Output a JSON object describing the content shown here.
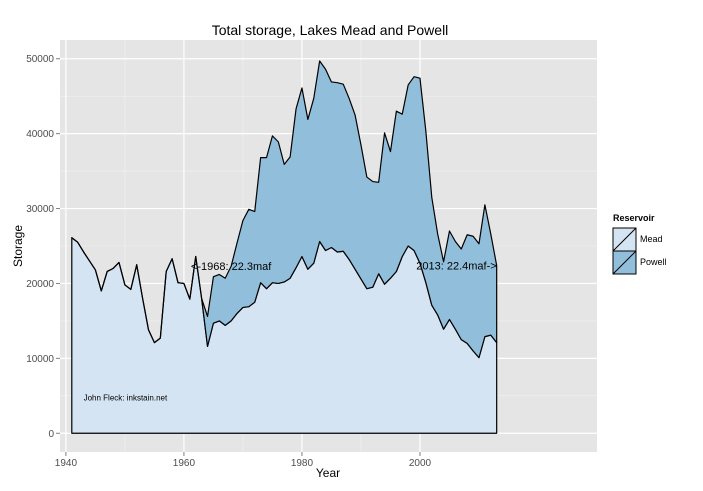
{
  "chart_data": {
    "type": "area",
    "stacked": true,
    "title": "Total storage, Lakes Mead and Powell",
    "xlabel": "Year",
    "ylabel": "Storage",
    "xlim": [
      1939,
      2030
    ],
    "ylim": [
      -2500,
      52500
    ],
    "x_ticks": [
      1940,
      1960,
      1980,
      2000
    ],
    "y_ticks": [
      0,
      10000,
      20000,
      30000,
      40000,
      50000
    ],
    "grid": true,
    "legend": {
      "title": "Reservoir",
      "placement": "right"
    },
    "x": [
      1941,
      1942,
      1943,
      1944,
      1945,
      1946,
      1947,
      1948,
      1949,
      1950,
      1951,
      1952,
      1953,
      1954,
      1955,
      1956,
      1957,
      1958,
      1959,
      1960,
      1961,
      1962,
      1963,
      1964,
      1965,
      1966,
      1967,
      1968,
      1969,
      1970,
      1971,
      1972,
      1973,
      1974,
      1975,
      1976,
      1977,
      1978,
      1979,
      1980,
      1981,
      1982,
      1983,
      1984,
      1985,
      1986,
      1987,
      1988,
      1989,
      1990,
      1991,
      1992,
      1993,
      1994,
      1995,
      1996,
      1997,
      1998,
      1999,
      2000,
      2001,
      2002,
      2003,
      2004,
      2005,
      2006,
      2007,
      2008,
      2009,
      2010,
      2011,
      2012,
      2013
    ],
    "series": [
      {
        "name": "Mead",
        "color": "#d5e4f3",
        "values": [
          26100,
          25500,
          24200,
          23000,
          21800,
          19000,
          21600,
          22000,
          22800,
          19800,
          19200,
          22500,
          18000,
          13800,
          12100,
          12700,
          21600,
          23300,
          20100,
          20000,
          17900,
          23600,
          18000,
          11600,
          14700,
          15000,
          14400,
          15000,
          16000,
          16800,
          16900,
          17500,
          20100,
          19300,
          20100,
          20000,
          20200,
          20700,
          22100,
          23600,
          21900,
          22700,
          25600,
          24400,
          24800,
          24200,
          24300,
          23200,
          21900,
          20600,
          19300,
          19500,
          21300,
          19900,
          20700,
          21600,
          23600,
          25000,
          24400,
          22700,
          20100,
          17100,
          15800,
          13900,
          15200,
          13900,
          12500,
          12000,
          11000,
          10100,
          12900,
          13100,
          12100
        ]
      },
      {
        "name": "Powell",
        "color": "#91bfdb",
        "values": [
          0,
          0,
          0,
          0,
          0,
          0,
          0,
          0,
          0,
          0,
          0,
          0,
          0,
          0,
          0,
          0,
          0,
          0,
          0,
          0,
          0,
          0,
          0,
          4000,
          6200,
          6200,
          6300,
          7300,
          9400,
          11600,
          13000,
          12100,
          16700,
          17500,
          19600,
          18900,
          15700,
          16200,
          21200,
          22500,
          20000,
          22000,
          24100,
          24200,
          22100,
          22600,
          22300,
          21500,
          20600,
          17900,
          14900,
          14100,
          12200,
          20200,
          16900,
          21400,
          19000,
          21500,
          23200,
          24700,
          20200,
          14400,
          10800,
          9000,
          11800,
          11700,
          12100,
          14500,
          15300,
          15200,
          17600,
          13500,
          10300
        ]
      }
    ],
    "annotations": [
      {
        "text": "<-1968: 22.3maf",
        "x": 1968,
        "y": 22300
      },
      {
        "text": "2013: 22.4maf->",
        "x": 2013,
        "y": 22400
      },
      {
        "text": "John Fleck: inkstain.net",
        "x": 1943,
        "y": 4800
      }
    ]
  }
}
